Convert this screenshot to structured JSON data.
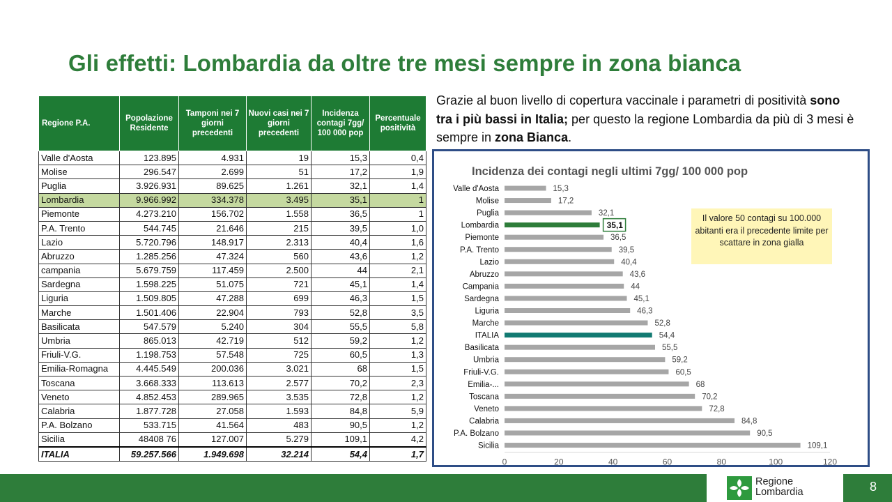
{
  "slide": {
    "title": "Gli effetti: Lombardia da oltre tre mesi sempre in zona bianca",
    "intro_1": "Grazie al buon livello di copertura vaccinale i parametri di positività ",
    "intro_bold_1": "sono tra i più bassi in Italia;",
    "intro_2": " per questo la regione Lombardia da più di 3 mesi è sempre in ",
    "intro_bold_2": "zona Bianca",
    "intro_3": ".",
    "note": "Il valore 50 contagi su 100.000 abitanti era il precedente limite per scattare in zona gialla",
    "page_number": "8",
    "logo_line1": "Regione",
    "logo_line2": "Lombardia"
  },
  "table": {
    "headers": [
      "Regione P.A.",
      "Popolazione Residente",
      "Tamponi nei 7 giorni precedenti",
      "Nuovi casi nei 7 giorni precedenti",
      "Incidenza contagi 7gg/ 100 000 pop",
      "Percentuale positività"
    ],
    "rows": [
      [
        "Valle d'Aosta",
        "123.895",
        "4.931",
        "19",
        "15,3",
        "0,4"
      ],
      [
        "Molise",
        "296.547",
        "2.699",
        "51",
        "17,2",
        "1,9"
      ],
      [
        "Puglia",
        "3.926.931",
        "89.625",
        "1.261",
        "32,1",
        "1,4"
      ],
      [
        "Lombardia",
        "9.966.992",
        "334.378",
        "3.495",
        "35,1",
        "1"
      ],
      [
        "Piemonte",
        "4.273.210",
        "156.702",
        "1.558",
        "36,5",
        "1"
      ],
      [
        "P.A. Trento",
        "544.745",
        "21.646",
        "215",
        "39,5",
        "1,0"
      ],
      [
        "Lazio",
        "5.720.796",
        "148.917",
        "2.313",
        "40,4",
        "1,6"
      ],
      [
        "Abruzzo",
        "1.285.256",
        "47.324",
        "560",
        "43,6",
        "1,2"
      ],
      [
        "campania",
        "5.679.759",
        "117.459",
        "2.500",
        "44",
        "2,1"
      ],
      [
        "Sardegna",
        "1.598.225",
        "51.075",
        "721",
        "45,1",
        "1,4"
      ],
      [
        "Liguria",
        "1.509.805",
        "47.288",
        "699",
        "46,3",
        "1,5"
      ],
      [
        "Marche",
        "1.501.406",
        "22.904",
        "793",
        "52,8",
        "3,5"
      ],
      [
        "Basilicata",
        "547.579",
        "5.240",
        "304",
        "55,5",
        "5,8"
      ],
      [
        "Umbria",
        "865.013",
        "42.719",
        "512",
        "59,2",
        "1,2"
      ],
      [
        "Friuli-V.G.",
        "1.198.753",
        "57.548",
        "725",
        "60,5",
        "1,3"
      ],
      [
        "Emilia-Romagna",
        "4.445.549",
        "200.036",
        "3.021",
        "68",
        "1,5"
      ],
      [
        "Toscana",
        "3.668.333",
        "113.613",
        "2.577",
        "70,2",
        "2,3"
      ],
      [
        "Veneto",
        "4.852.453",
        "289.965",
        "3.535",
        "72,8",
        "1,2"
      ],
      [
        "Calabria",
        "1.877.728",
        "27.058",
        "1.593",
        "84,8",
        "5,9"
      ],
      [
        "P.A. Bolzano",
        "533.715",
        "41.564",
        "483",
        "90,5",
        "1,2"
      ],
      [
        "Sicilia",
        "48408 76",
        "127.007",
        "5.279",
        "109,1",
        "4,2"
      ]
    ],
    "total": [
      "ITALIA",
      "59.257.566",
      "1.949.698",
      "32.214",
      "54,4",
      "1,7"
    ]
  },
  "chart_data": {
    "type": "bar",
    "orientation": "horizontal",
    "title": "Incidenza dei contagi negli ultimi 7gg/ 100 000 pop",
    "categories": [
      "Valle d'Aosta",
      "Molise",
      "Puglia",
      "Lombardia",
      "Piemonte",
      "P.A. Trento",
      "Lazio",
      "Abruzzo",
      "Campania",
      "Sardegna",
      "Liguria",
      "Marche",
      "ITALIA",
      "Basilicata",
      "Umbria",
      "Friuli-V.G.",
      "Emilia-...",
      "Toscana",
      "Veneto",
      "Calabria",
      "P.A. Bolzano",
      "Sicilia"
    ],
    "values": [
      15.3,
      17.2,
      32.1,
      35.1,
      36.5,
      39.5,
      40.4,
      43.6,
      44,
      45.1,
      46.3,
      52.8,
      54.4,
      55.5,
      59.2,
      60.5,
      68,
      70.2,
      72.8,
      84.8,
      90.5,
      109.1
    ],
    "value_labels": [
      "15,3",
      "17,2",
      "32,1",
      "35,1",
      "36,5",
      "39,5",
      "40,4",
      "43,6",
      "44",
      "45,1",
      "46,3",
      "52,8",
      "54,4",
      "55,5",
      "59,2",
      "60,5",
      "68",
      "70,2",
      "72,8",
      "84,8",
      "90,5",
      "109,1"
    ],
    "highlight": {
      "Lombardia": "#2e7d3a",
      "ITALIA": "#127a72"
    },
    "highlight_boxed": "Lombardia",
    "bar_color": "#a6a6a6",
    "xlim": [
      0,
      120
    ],
    "xticks": [
      0,
      20,
      40,
      60,
      80,
      100,
      120
    ],
    "grid": false,
    "legend": "none"
  }
}
